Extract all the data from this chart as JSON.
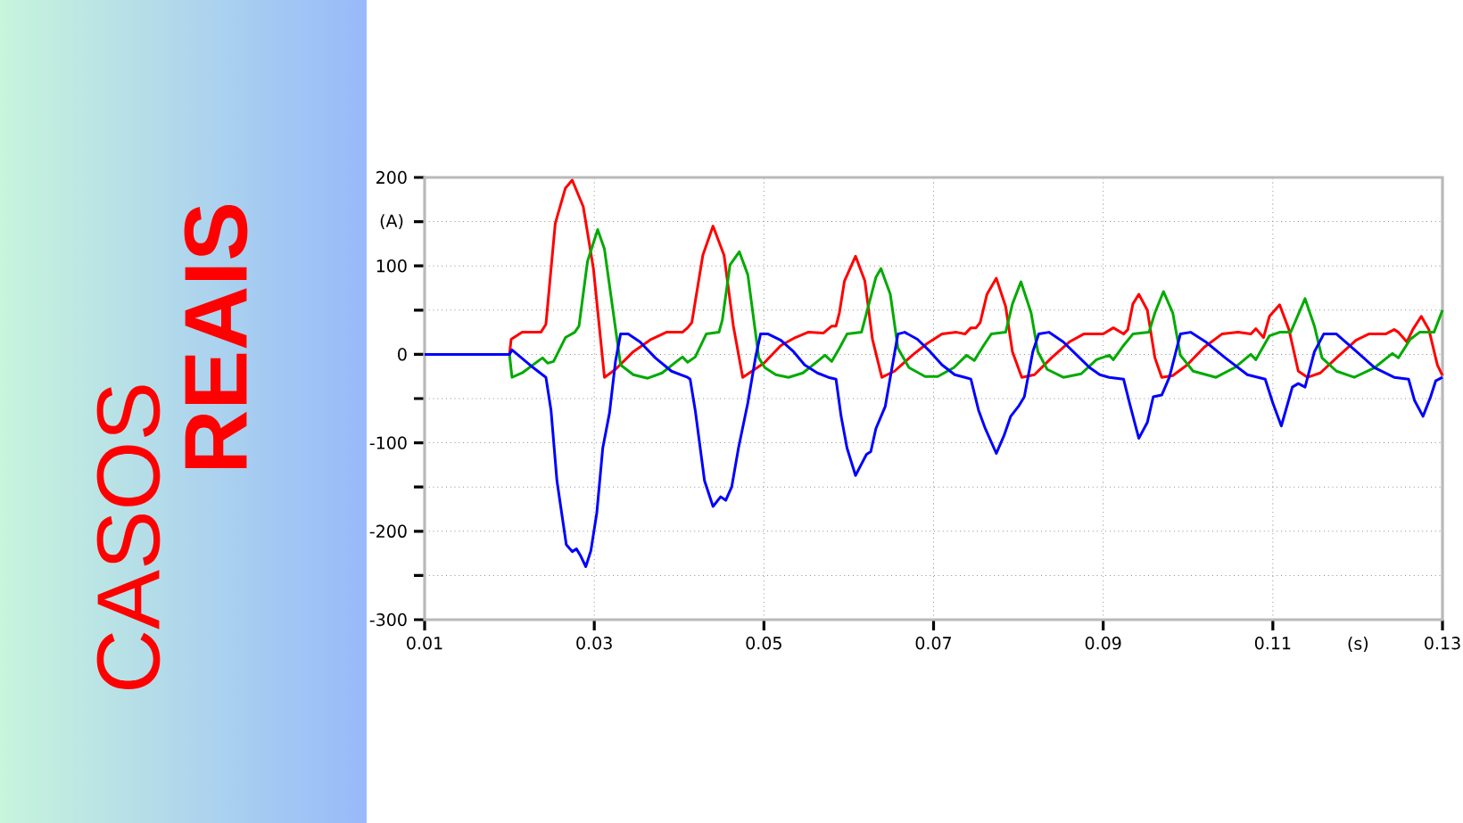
{
  "chart_data": {
    "type": "line",
    "annotations": [
      "CASOS",
      "REAIS"
    ],
    "xlabel": "(s)",
    "ylabel": "(A)",
    "xlim": [
      0.01,
      0.13
    ],
    "ylim": [
      -300,
      200
    ],
    "xticks": [
      0.01,
      0.03,
      0.05,
      0.07,
      0.09,
      0.11,
      0.13
    ],
    "yticks": [
      -300,
      {
        "value": -250,
        "label": null
      },
      -200,
      {
        "value": -150,
        "label": null
      },
      -100,
      {
        "value": -50,
        "label": null
      },
      0,
      {
        "value": 50,
        "label": null
      },
      100,
      {
        "value": 150,
        "label": null
      },
      200
    ],
    "grid": true,
    "series": [
      {
        "color": "#ff0000",
        "x": [
          0.01,
          0.02,
          0.0202,
          0.0215,
          0.0237,
          0.0243,
          0.0254,
          0.0266,
          0.0274,
          0.0287,
          0.0299,
          0.0312,
          0.0325,
          0.0346,
          0.0367,
          0.0385,
          0.0404,
          0.041,
          0.0415,
          0.0428,
          0.044,
          0.0453,
          0.0464,
          0.0475,
          0.05,
          0.052,
          0.0537,
          0.0552,
          0.057,
          0.058,
          0.0585,
          0.0589,
          0.0595,
          0.0608,
          0.0619,
          0.0628,
          0.0639,
          0.0654,
          0.0675,
          0.0692,
          0.071,
          0.0727,
          0.0737,
          0.0744,
          0.075,
          0.0755,
          0.0763,
          0.0774,
          0.0785,
          0.0793,
          0.0804,
          0.0819,
          0.0839,
          0.086,
          0.0877,
          0.09,
          0.0912,
          0.0924,
          0.0929,
          0.0935,
          0.0942,
          0.0952,
          0.0961,
          0.0969,
          0.0982,
          0.0999,
          0.1019,
          0.104,
          0.1059,
          0.1074,
          0.108,
          0.1089,
          0.1096,
          0.1108,
          0.1119,
          0.113,
          0.1141,
          0.1156,
          0.1175,
          0.1198,
          0.1213,
          0.1233,
          0.1243,
          0.1248,
          0.1258,
          0.1265,
          0.1275,
          0.1284,
          0.1294,
          0.13
        ],
        "values": [
          0,
          0,
          17,
          25,
          25,
          34,
          148,
          188,
          197,
          167,
          97,
          -26,
          -17,
          3,
          17,
          25,
          25,
          30,
          36,
          112,
          145,
          112,
          32,
          -26,
          -10,
          10,
          19,
          25,
          24,
          32,
          32,
          47,
          83,
          111,
          83,
          17,
          -26,
          -19,
          -1,
          12,
          23,
          25,
          23,
          30,
          30,
          36,
          68,
          86,
          54,
          3,
          -26,
          -23,
          -4,
          14,
          23,
          23,
          30,
          23,
          28,
          57,
          68,
          50,
          -4,
          -26,
          -24,
          -12,
          8,
          23,
          25,
          23,
          29,
          19,
          43,
          56,
          28,
          -19,
          -26,
          -21,
          -4,
          16,
          23,
          23,
          28,
          25,
          14,
          28,
          43,
          28,
          -12,
          -24
        ]
      },
      {
        "color": "#00aa00",
        "x": [
          0.01,
          0.02,
          0.0203,
          0.0215,
          0.0236,
          0.0239,
          0.0245,
          0.0252,
          0.0266,
          0.0277,
          0.0282,
          0.0292,
          0.0304,
          0.0312,
          0.0322,
          0.0331,
          0.0346,
          0.0363,
          0.038,
          0.0397,
          0.0404,
          0.041,
          0.0419,
          0.0432,
          0.0447,
          0.0451,
          0.046,
          0.0471,
          0.0481,
          0.0494,
          0.0501,
          0.0514,
          0.0529,
          0.0546,
          0.0563,
          0.0572,
          0.058,
          0.0589,
          0.0598,
          0.0615,
          0.0623,
          0.0632,
          0.0638,
          0.0649,
          0.0658,
          0.0671,
          0.069,
          0.0705,
          0.0724,
          0.0739,
          0.0748,
          0.0759,
          0.0768,
          0.0785,
          0.0793,
          0.0803,
          0.0815,
          0.0823,
          0.0834,
          0.0853,
          0.0874,
          0.0892,
          0.0907,
          0.0912,
          0.0924,
          0.0935,
          0.0954,
          0.0961,
          0.0971,
          0.0982,
          0.0991,
          0.1006,
          0.1033,
          0.1055,
          0.1074,
          0.108,
          0.1096,
          0.1108,
          0.1121,
          0.1138,
          0.1149,
          0.1158,
          0.1175,
          0.1196,
          0.122,
          0.1241,
          0.1248,
          0.1262,
          0.1273,
          0.129,
          0.13
        ],
        "values": [
          0,
          0,
          -26,
          -21,
          -6,
          -4,
          -10,
          -8,
          19,
          25,
          32,
          105,
          141,
          119,
          50,
          -12,
          -23,
          -27,
          -21,
          -8,
          -3,
          -9,
          -3,
          23,
          25,
          39,
          101,
          116,
          90,
          -4,
          -15,
          -23,
          -26,
          -21,
          -8,
          -1,
          -8,
          7,
          23,
          25,
          54,
          87,
          97,
          68,
          7,
          -15,
          -25,
          -25,
          -15,
          -1,
          -7,
          10,
          23,
          25,
          57,
          82,
          47,
          3,
          -17,
          -26,
          -22,
          -6,
          -1,
          -6,
          10,
          23,
          25,
          47,
          71,
          47,
          -1,
          -19,
          -26,
          -15,
          0,
          -6,
          21,
          25,
          25,
          63,
          32,
          -4,
          -19,
          -26,
          -15,
          1,
          -4,
          17,
          25,
          25,
          50
        ]
      },
      {
        "color": "#0000ff",
        "x": [
          0.01,
          0.02,
          0.0203,
          0.0228,
          0.0243,
          0.0249,
          0.0256,
          0.0267,
          0.0274,
          0.0279,
          0.0284,
          0.029,
          0.0296,
          0.0303,
          0.031,
          0.0318,
          0.0325,
          0.0331,
          0.034,
          0.0354,
          0.0372,
          0.0391,
          0.041,
          0.0413,
          0.0419,
          0.043,
          0.044,
          0.0449,
          0.0455,
          0.0462,
          0.047,
          0.0481,
          0.049,
          0.0496,
          0.0505,
          0.052,
          0.0535,
          0.0548,
          0.0563,
          0.0576,
          0.0585,
          0.0591,
          0.0598,
          0.0608,
          0.0615,
          0.0621,
          0.0626,
          0.0632,
          0.0643,
          0.0651,
          0.0658,
          0.0666,
          0.0681,
          0.0696,
          0.071,
          0.0725,
          0.0737,
          0.0744,
          0.0753,
          0.0761,
          0.0774,
          0.0783,
          0.0791,
          0.08,
          0.0807,
          0.0817,
          0.0824,
          0.0836,
          0.0853,
          0.0869,
          0.0884,
          0.0896,
          0.0907,
          0.0924,
          0.0931,
          0.0942,
          0.0952,
          0.0959,
          0.0969,
          0.0978,
          0.0991,
          0.1003,
          0.1021,
          0.1044,
          0.107,
          0.1091,
          0.11,
          0.111,
          0.1123,
          0.113,
          0.1138,
          0.1149,
          0.116,
          0.1175,
          0.1194,
          0.122,
          0.1243,
          0.126,
          0.1267,
          0.1277,
          0.1286,
          0.1292,
          0.13
        ],
        "values": [
          0,
          0,
          5,
          -15,
          -26,
          -63,
          -143,
          -215,
          -223,
          -220,
          -228,
          -240,
          -222,
          -179,
          -106,
          -66,
          -8,
          23,
          23,
          14,
          -4,
          -19,
          -26,
          -28,
          -63,
          -143,
          -172,
          -161,
          -165,
          -150,
          -106,
          -55,
          -4,
          23,
          23,
          16,
          3,
          -12,
          -21,
          -26,
          -28,
          -70,
          -106,
          -137,
          -124,
          -113,
          -110,
          -84,
          -59,
          -15,
          23,
          25,
          17,
          3,
          -12,
          -23,
          -26,
          -28,
          -63,
          -84,
          -112,
          -92,
          -70,
          -59,
          -48,
          3,
          23,
          25,
          14,
          -1,
          -15,
          -23,
          -26,
          -28,
          -55,
          -95,
          -77,
          -48,
          -46,
          -26,
          23,
          25,
          14,
          -4,
          -23,
          -28,
          -55,
          -81,
          -37,
          -33,
          -37,
          3,
          23,
          23,
          7,
          -15,
          -26,
          -28,
          -52,
          -70,
          -48,
          -30,
          -26
        ]
      }
    ]
  }
}
